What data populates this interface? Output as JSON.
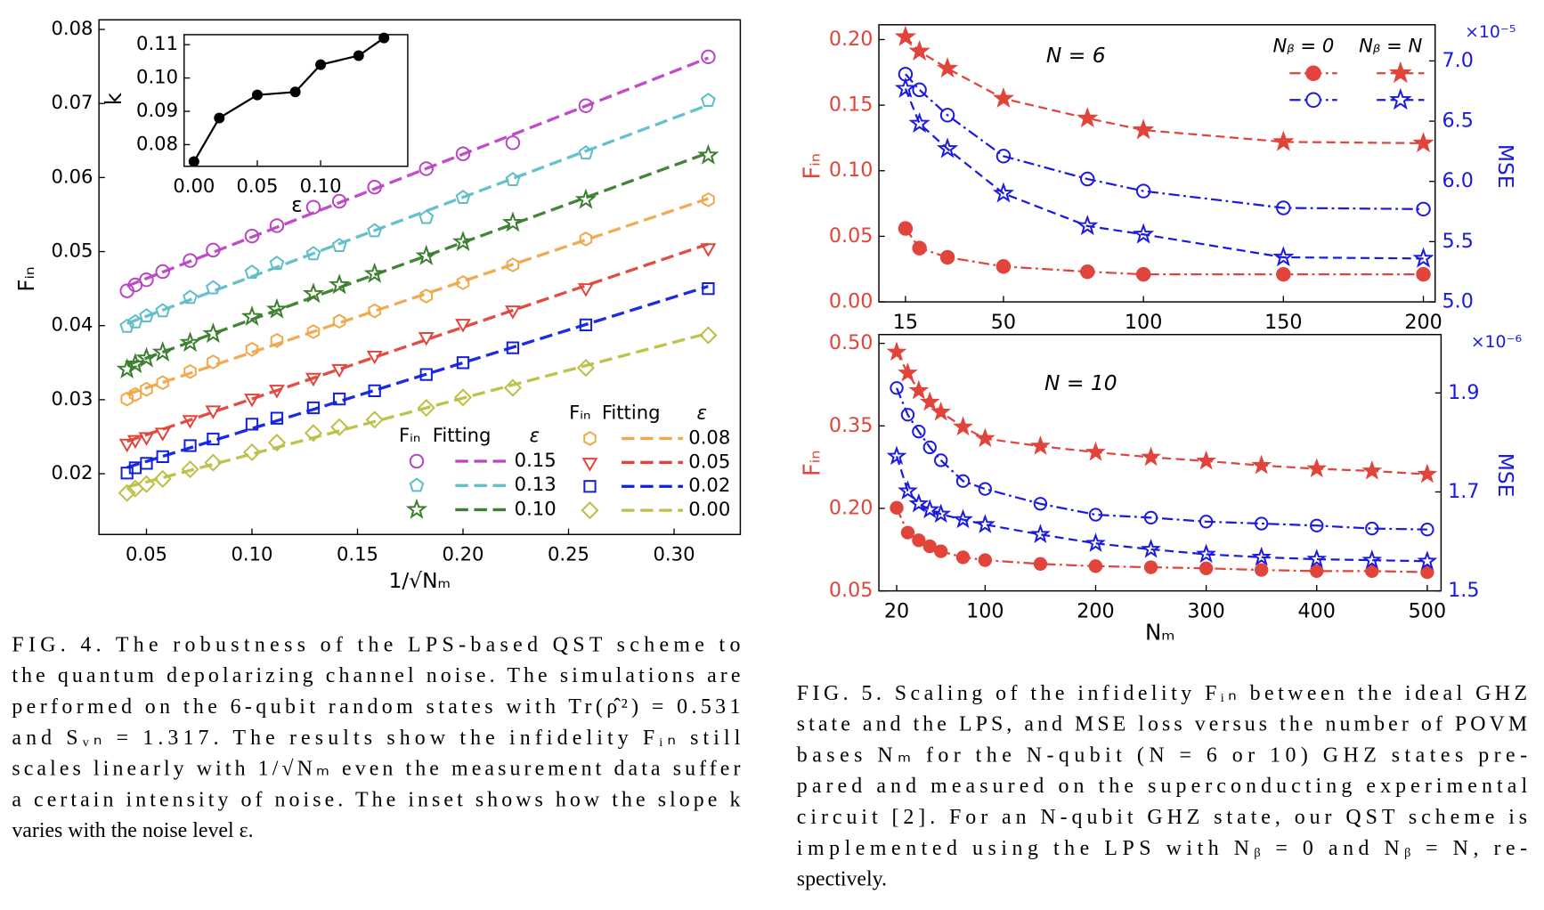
{
  "chart_data": [
    {
      "type": "scatter",
      "fit_lines": true,
      "xlabel": "1/√Nₘ",
      "ylabel": "Fᵢₙ",
      "legend_headers": [
        "Fᵢₙ",
        "Fitting",
        "ε"
      ],
      "x": [
        0.0408,
        0.0447,
        0.05,
        0.0577,
        0.0707,
        0.0816,
        0.1,
        0.1118,
        0.1291,
        0.1414,
        0.1581,
        0.1826,
        0.2,
        0.2236,
        0.2582,
        0.3162
      ],
      "xlim": [
        0.0275,
        0.3314
      ],
      "xticks": [
        0.05,
        {
          "value": 0.1,
          "label": "0.10"
        },
        0.15,
        {
          "value": 0.2,
          "label": "0.20"
        },
        0.25,
        {
          "value": 0.3,
          "label": "0.30"
        }
      ],
      "ylim": [
        0.0118,
        0.0813
      ],
      "yticks": [
        0.02,
        0.03,
        0.04,
        0.05,
        0.06,
        0.07,
        0.08
      ],
      "series": [
        {
          "name": "0.15",
          "color": "#bb44c4",
          "marker": "circle",
          "values": [
            0.0447,
            0.0455,
            0.0462,
            0.0473,
            0.0488,
            0.0502,
            0.0521,
            0.0535,
            0.056,
            0.0568,
            0.0587,
            0.0612,
            0.0632,
            0.0647,
            0.0697,
            0.0763
          ]
        },
        {
          "name": "0.13",
          "color": "#5dbec8",
          "marker": "pentagon",
          "values": [
            0.0399,
            0.0405,
            0.0413,
            0.042,
            0.0438,
            0.0451,
            0.0472,
            0.0484,
            0.0497,
            0.0508,
            0.0528,
            0.0546,
            0.0573,
            0.0597,
            0.0633,
            0.0704
          ]
        },
        {
          "name": "0.10",
          "color": "#3a7e2e",
          "marker": "star",
          "values": [
            0.0341,
            0.0348,
            0.0356,
            0.0364,
            0.0377,
            0.0389,
            0.0412,
            0.0422,
            0.0443,
            0.0455,
            0.047,
            0.0494,
            0.0513,
            0.0539,
            0.057,
            0.063
          ]
        },
        {
          "name": "0.08",
          "color": "#f0a84a",
          "marker": "hexagon",
          "values": [
            0.0301,
            0.0307,
            0.0314,
            0.0323,
            0.0338,
            0.0351,
            0.0368,
            0.038,
            0.0392,
            0.0406,
            0.042,
            0.044,
            0.0458,
            0.0482,
            0.0517,
            0.057
          ]
        },
        {
          "name": "0.05",
          "color": "#e0443a",
          "marker": "triangle-down",
          "values": [
            0.0241,
            0.0246,
            0.025,
            0.0256,
            0.0273,
            0.0286,
            0.0302,
            0.0314,
            0.033,
            0.0342,
            0.036,
            0.0385,
            0.0403,
            0.0421,
            0.0451,
            0.0505
          ]
        },
        {
          "name": "0.02",
          "color": "#1020e0",
          "marker": "square",
          "values": [
            0.0201,
            0.0208,
            0.0214,
            0.0223,
            0.0238,
            0.0247,
            0.0267,
            0.0275,
            0.0289,
            0.0301,
            0.0312,
            0.0334,
            0.035,
            0.037,
            0.0401,
            0.045
          ]
        },
        {
          "name": "0.00",
          "color": "#bcbf44",
          "marker": "diamond",
          "values": [
            0.0174,
            0.018,
            0.0186,
            0.0193,
            0.0206,
            0.0215,
            0.0229,
            0.0242,
            0.0255,
            0.0263,
            0.0273,
            0.0289,
            0.0303,
            0.0316,
            0.0343,
            0.0387
          ]
        }
      ]
    },
    {
      "type": "line",
      "xlabel": "ε",
      "ylabel": "k",
      "x": [
        0,
        0.02,
        0.05,
        0.08,
        0.1,
        0.13,
        0.15
      ],
      "xlim": [
        -0.0078,
        0.1688
      ],
      "xticks": [
        {
          "value": 0,
          "label": "0.00"
        },
        0.05,
        {
          "value": 0.1,
          "label": "0.10"
        }
      ],
      "ylim": [
        0.0735,
        0.113
      ],
      "yticks": [
        0.08,
        0.09,
        {
          "value": 0.1,
          "label": "0.10"
        },
        0.11
      ],
      "series": [
        {
          "color": "#000000",
          "marker": "circle",
          "filled": true,
          "values": [
            0.0749,
            0.088,
            0.0949,
            0.0958,
            0.104,
            0.1067,
            0.112
          ]
        }
      ]
    },
    {
      "type": "line",
      "annotation": "N = 6",
      "ylabel": "Fᵢₙ",
      "y2label": "MSE",
      "y_color": "#e0443a",
      "y2_color": "#1a1ae0",
      "y2_offset": "×10⁻⁵",
      "legend_columns": [
        "Nᵦ = 0",
        "Nᵦ = N"
      ],
      "x": [
        15,
        20,
        30,
        50,
        80,
        100,
        150,
        200
      ],
      "xlim": [
        5.5,
        204.2
      ],
      "xticks": [
        15,
        50,
        100,
        150,
        200
      ],
      "ylim": [
        0,
        0.2113
      ],
      "yticks": [
        {
          "value": 0,
          "label": "0.00"
        },
        0.05,
        {
          "value": 0.1,
          "label": "0.10"
        },
        0.15,
        {
          "value": 0.2,
          "label": "0.20"
        }
      ],
      "y2lim": [
        5,
        7.3
      ],
      "y2ticks": [
        {
          "value": 5,
          "label": "5.0"
        },
        5.5,
        {
          "value": 6,
          "label": "6.0"
        },
        6.5,
        {
          "value": 7,
          "label": "7.0"
        }
      ],
      "series": [
        {
          "color": "#e0443a",
          "marker": "circle",
          "filled": true,
          "linestyle": "dashdot",
          "values": [
            0.056,
            0.041,
            0.034,
            0.027,
            0.023,
            0.021,
            0.021,
            0.021
          ]
        },
        {
          "color": "#e0443a",
          "marker": "star",
          "filled": true,
          "linestyle": "dashed",
          "values": [
            0.202,
            0.191,
            0.178,
            0.155,
            0.14,
            0.131,
            0.122,
            0.121
          ]
        },
        {
          "color": "#1a1ae0",
          "marker": "circle",
          "filled": false,
          "linestyle": "dashdot",
          "axis": "y2",
          "values": [
            6.89,
            6.76,
            6.55,
            6.21,
            6.02,
            5.92,
            5.78,
            5.77
          ]
        },
        {
          "color": "#1a1ae0",
          "marker": "star",
          "filled": false,
          "linestyle": "dashed",
          "axis": "y2",
          "values": [
            6.77,
            6.48,
            6.27,
            5.9,
            5.63,
            5.56,
            5.37,
            5.36
          ]
        }
      ]
    },
    {
      "type": "line",
      "annotation": "N = 10",
      "xlabel": "Nₘ",
      "ylabel": "Fᵢₙ",
      "y2label": "MSE",
      "y_color": "#e0443a",
      "y2_color": "#1a1ae0",
      "y2_offset": "×10⁻⁶",
      "x": [
        20,
        30,
        40,
        50,
        60,
        80,
        100,
        150,
        200,
        250,
        300,
        350,
        400,
        450,
        500
      ],
      "xlim": [
        3.9,
        512.5
      ],
      "xticks": [
        20,
        100,
        200,
        300,
        400,
        500
      ],
      "ylim": [
        0.05,
        0.516
      ],
      "yticks": [
        0.05,
        {
          "value": 0.2,
          "label": "0.20"
        },
        0.35,
        {
          "value": 0.5,
          "label": "0.50"
        }
      ],
      "y2lim": [
        1.5,
        2.018
      ],
      "y2ticks": [
        1.5,
        1.7,
        1.9
      ],
      "series": [
        {
          "color": "#e0443a",
          "marker": "circle",
          "filled": true,
          "linestyle": "dashdot",
          "values": [
            0.201,
            0.156,
            0.142,
            0.131,
            0.122,
            0.111,
            0.106,
            0.099,
            0.095,
            0.093,
            0.091,
            0.088,
            0.086,
            0.086,
            0.084
          ]
        },
        {
          "color": "#e0443a",
          "marker": "star",
          "filled": true,
          "linestyle": "dashed",
          "values": [
            0.484,
            0.446,
            0.414,
            0.393,
            0.375,
            0.348,
            0.327,
            0.313,
            0.302,
            0.293,
            0.286,
            0.278,
            0.272,
            0.268,
            0.262
          ]
        },
        {
          "color": "#1a1ae0",
          "marker": "circle",
          "filled": false,
          "linestyle": "dashdot",
          "axis": "y2",
          "values": [
            1.91,
            1.856,
            1.822,
            1.79,
            1.764,
            1.722,
            1.706,
            1.676,
            1.654,
            1.648,
            1.64,
            1.636,
            1.632,
            1.626,
            1.624
          ]
        },
        {
          "color": "#1a1ae0",
          "marker": "star",
          "filled": false,
          "linestyle": "dashed",
          "axis": "y2",
          "values": [
            1.772,
            1.702,
            1.676,
            1.664,
            1.655,
            1.644,
            1.634,
            1.614,
            1.596,
            1.584,
            1.574,
            1.568,
            1.564,
            1.562,
            1.56
          ]
        }
      ]
    }
  ],
  "captions": [
    {
      "lines": [
        "FIG. 4.   The robustness of the LPS-based QST scheme to",
        "the quantum depolarizing channel noise. The simulations are",
        "performed on the 6-qubit random states with Tr(ρ̂²) = 0.531",
        "and Sᵥₙ = 1.317. The results show the infidelity Fᵢₙ still",
        "scales linearly with 1/√Nₘ even the measurement data suffer",
        "a certain intensity of noise. The inset shows how the slope k",
        "varies with the noise level ε."
      ]
    },
    {
      "lines": [
        "FIG. 5.   Scaling of the infidelity Fᵢₙ between the ideal GHZ",
        "state and the LPS, and MSE loss versus the number of POVM",
        "bases Nₘ for the N-qubit (N = 6 or 10) GHZ states pre-",
        "pared and measured on the superconducting experimental",
        "circuit [2]. For an N-qubit GHZ state, our QST scheme is",
        "implemented using the LPS with Nᵦ = 0 and Nᵦ = N, re-",
        "spectively."
      ]
    }
  ]
}
